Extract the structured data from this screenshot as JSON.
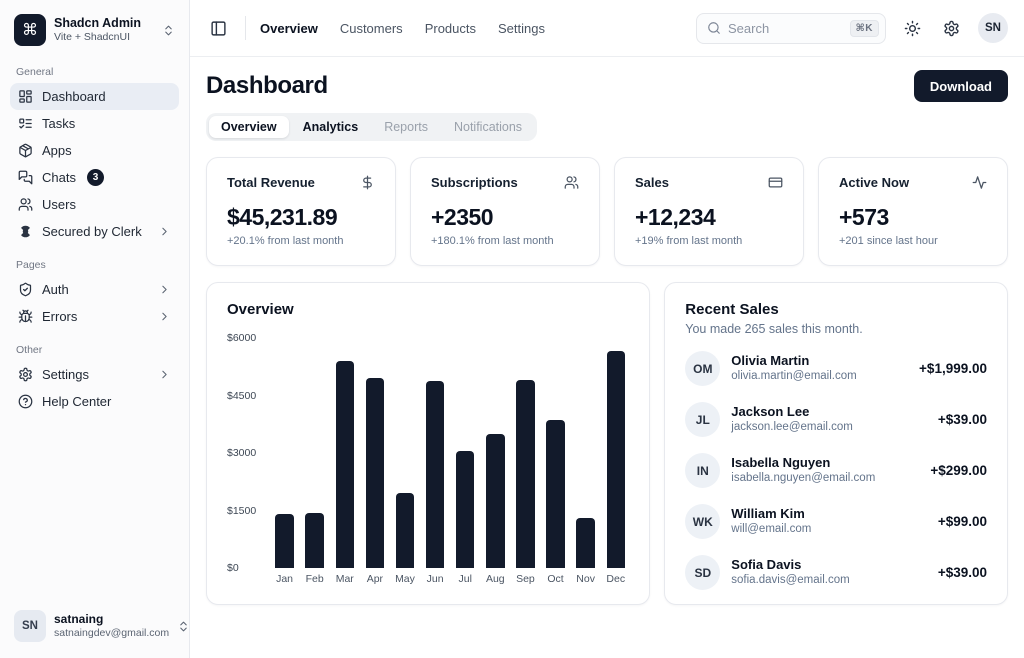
{
  "icons": {
    "logo_glyph": "⌘"
  },
  "sidebar": {
    "team_name": "Shadcn Admin",
    "team_plan": "Vite + ShadcnUI",
    "sections": [
      {
        "label": "General",
        "items": [
          {
            "label": "Dashboard"
          },
          {
            "label": "Tasks"
          },
          {
            "label": "Apps"
          },
          {
            "label": "Chats",
            "badge": "3"
          },
          {
            "label": "Users"
          },
          {
            "label": "Secured by Clerk"
          }
        ]
      },
      {
        "label": "Pages",
        "items": [
          {
            "label": "Auth"
          },
          {
            "label": "Errors"
          }
        ]
      },
      {
        "label": "Other",
        "items": [
          {
            "label": "Settings"
          },
          {
            "label": "Help Center"
          }
        ]
      }
    ],
    "user_initials": "SN",
    "user_name": "satnaing",
    "user_email": "satnaingdev@gmail.com"
  },
  "topbar": {
    "nav": [
      {
        "label": "Overview"
      },
      {
        "label": "Customers"
      },
      {
        "label": "Products"
      },
      {
        "label": "Settings"
      }
    ],
    "search_placeholder": "Search",
    "search_shortcut": "⌘K",
    "avatar_initials": "SN"
  },
  "page": {
    "title": "Dashboard",
    "download_label": "Download",
    "tabs": [
      {
        "label": "Overview"
      },
      {
        "label": "Analytics"
      },
      {
        "label": "Reports"
      },
      {
        "label": "Notifications"
      }
    ]
  },
  "stats": [
    {
      "title": "Total Revenue",
      "value": "$45,231.89",
      "change": "+20.1% from last month"
    },
    {
      "title": "Subscriptions",
      "value": "+2350",
      "change": "+180.1% from last month"
    },
    {
      "title": "Sales",
      "value": "+12,234",
      "change": "+19% from last month"
    },
    {
      "title": "Active Now",
      "value": "+573",
      "change": "+201 since last hour"
    }
  ],
  "chart_data": {
    "type": "bar",
    "title": "Overview",
    "categories": [
      "Jan",
      "Feb",
      "Mar",
      "Apr",
      "May",
      "Jun",
      "Jul",
      "Aug",
      "Sep",
      "Oct",
      "Nov",
      "Dec"
    ],
    "values": [
      1420,
      1430,
      5400,
      4950,
      1950,
      4880,
      3050,
      3500,
      4900,
      3850,
      1300,
      5650
    ],
    "xlabel": "",
    "ylabel": "",
    "ylim": [
      0,
      6000
    ],
    "yticks": [
      0,
      1500,
      3000,
      4500,
      6000
    ],
    "ytick_labels": [
      "$0",
      "$1500",
      "$3000",
      "$4500",
      "$6000"
    ],
    "bar_color": "#121a2b",
    "grid": false,
    "legend": false
  },
  "recent_sales": {
    "title": "Recent Sales",
    "subtitle": "You made 265 sales this month.",
    "items": [
      {
        "initials": "OM",
        "name": "Olivia Martin",
        "email": "olivia.martin@email.com",
        "amount": "+$1,999.00"
      },
      {
        "initials": "JL",
        "name": "Jackson Lee",
        "email": "jackson.lee@email.com",
        "amount": "+$39.00"
      },
      {
        "initials": "IN",
        "name": "Isabella Nguyen",
        "email": "isabella.nguyen@email.com",
        "amount": "+$299.00"
      },
      {
        "initials": "WK",
        "name": "William Kim",
        "email": "will@email.com",
        "amount": "+$99.00"
      },
      {
        "initials": "SD",
        "name": "Sofia Davis",
        "email": "sofia.davis@email.com",
        "amount": "+$39.00"
      }
    ]
  }
}
